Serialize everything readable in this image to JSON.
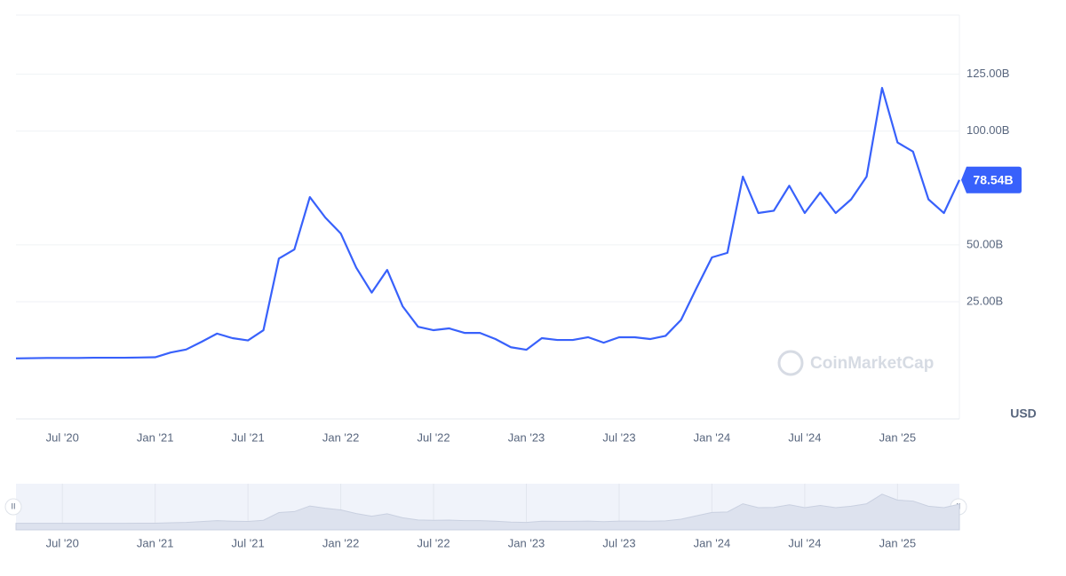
{
  "chart_data": {
    "type": "line",
    "x": [
      "2020-04",
      "2020-05",
      "2020-06",
      "2020-07",
      "2020-08",
      "2020-09",
      "2020-10",
      "2020-11",
      "2020-12",
      "2021-01",
      "2021-02",
      "2021-03",
      "2021-04",
      "2021-05",
      "2021-06",
      "2021-07",
      "2021-08",
      "2021-09",
      "2021-10",
      "2021-11",
      "2021-12",
      "2022-01",
      "2022-02",
      "2022-03",
      "2022-04",
      "2022-05",
      "2022-06",
      "2022-07",
      "2022-08",
      "2022-09",
      "2022-10",
      "2022-11",
      "2022-12",
      "2023-01",
      "2023-02",
      "2023-03",
      "2023-04",
      "2023-05",
      "2023-06",
      "2023-07",
      "2023-08",
      "2023-09",
      "2023-10",
      "2023-11",
      "2023-12",
      "2024-01",
      "2024-02",
      "2024-03",
      "2024-04",
      "2024-05",
      "2024-06",
      "2024-07",
      "2024-08",
      "2024-09",
      "2024-10",
      "2024-11",
      "2024-12",
      "2025-01",
      "2025-02",
      "2025-03",
      "2025-04",
      "2025-05"
    ],
    "series": [
      {
        "color": "#3861fb",
        "values": [
          0.1,
          0.2,
          0.3,
          0.3,
          0.3,
          0.4,
          0.4,
          0.4,
          0.5,
          0.6,
          2.7,
          4,
          7.4,
          11,
          9,
          8,
          12.5,
          44,
          48,
          71,
          62,
          55,
          40,
          29,
          39,
          23,
          14,
          12.5,
          13.3,
          11.3,
          11.3,
          8.6,
          5,
          3.9,
          9,
          8.2,
          8.2,
          9.4,
          7,
          9.4,
          9.4,
          8.6,
          10,
          17,
          31,
          44.5,
          46.5,
          80,
          64,
          65,
          76,
          64,
          73,
          64,
          70,
          80,
          119,
          95,
          91,
          70,
          64,
          78.54
        ]
      }
    ],
    "xlim": [
      "2020-04",
      "2025-05"
    ],
    "xticks": [
      {
        "value": "2020-07",
        "label": "Jul '20"
      },
      {
        "value": "2021-01",
        "label": "Jan '21"
      },
      {
        "value": "2021-07",
        "label": "Jul '21"
      },
      {
        "value": "2022-01",
        "label": "Jan '22"
      },
      {
        "value": "2022-07",
        "label": "Jul '22"
      },
      {
        "value": "2023-01",
        "label": "Jan '23"
      },
      {
        "value": "2023-07",
        "label": "Jul '23"
      },
      {
        "value": "2024-01",
        "label": "Jan '24"
      },
      {
        "value": "2024-07",
        "label": "Jul '24"
      },
      {
        "value": "2025-01",
        "label": "Jan '25"
      }
    ],
    "ylim": [
      -26.5,
      151
    ],
    "yticks": [
      {
        "value": 25,
        "label": "25.00B"
      },
      {
        "value": 50,
        "label": "50.00B"
      },
      {
        "value": 100,
        "label": "100.00B"
      },
      {
        "value": 125,
        "label": "125.00B"
      }
    ],
    "price_tag": {
      "value": 78.54,
      "label": "78.54B"
    },
    "y_unit": "USD",
    "watermark": "CoinMarketCap",
    "grid": true
  }
}
